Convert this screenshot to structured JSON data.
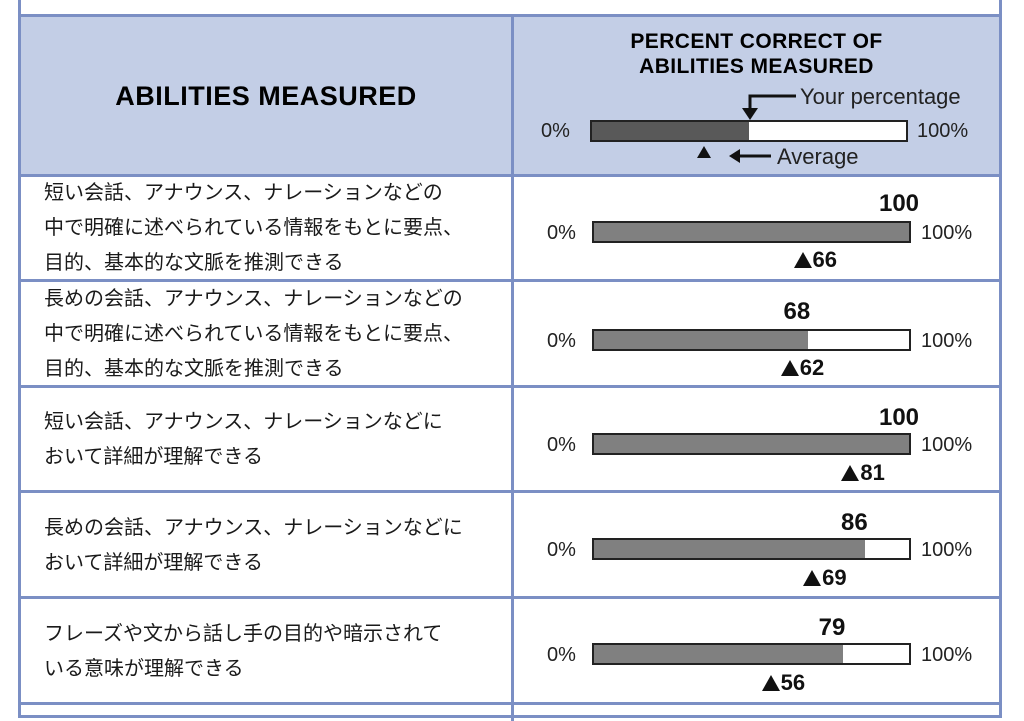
{
  "header": {
    "left_title": "ABILITIES MEASURED",
    "right_title_line1": "PERCENT CORRECT OF",
    "right_title_line2": "ABILITIES MEASURED",
    "legend": {
      "your_percentage_label": "Your percentage",
      "average_label": "Average",
      "min_label": "0%",
      "max_label": "100%",
      "example_fill_fraction": 0.5
    }
  },
  "rows": [
    {
      "text_lines": [
        "短い会話、アナウンス、ナレーションなどの",
        "中で明確に述べられている情報をもとに要点、",
        "目的、基本的な文脈を推測できる"
      ],
      "score": 100,
      "score_label": "100",
      "average": 66,
      "average_label": "66",
      "min_label": "0%",
      "max_label": "100%"
    },
    {
      "text_lines": [
        "長めの会話、アナウンス、ナレーションなどの",
        "中で明確に述べられている情報をもとに要点、",
        "目的、基本的な文脈を推測できる"
      ],
      "score": 68,
      "score_label": "68",
      "average": 62,
      "average_label": "62",
      "min_label": "0%",
      "max_label": "100%"
    },
    {
      "text_lines": [
        "短い会話、アナウンス、ナレーションなどに",
        "おいて詳細が理解できる"
      ],
      "score": 100,
      "score_label": "100",
      "average": 81,
      "average_label": "81",
      "min_label": "0%",
      "max_label": "100%"
    },
    {
      "text_lines": [
        "長めの会話、アナウンス、ナレーションなどに",
        "おいて詳細が理解できる"
      ],
      "score": 86,
      "score_label": "86",
      "average": 69,
      "average_label": "69",
      "min_label": "0%",
      "max_label": "100%"
    },
    {
      "text_lines": [
        "フレーズや文から話し手の目的や暗示されて",
        "いる意味が理解できる"
      ],
      "score": 79,
      "score_label": "79",
      "average": 56,
      "average_label": "56",
      "min_label": "0%",
      "max_label": "100%"
    }
  ],
  "colors": {
    "border": "#7b8fc4",
    "header_bg": "#c3cee6",
    "bar_fill": "#808080",
    "legend_fill": "#595959"
  }
}
